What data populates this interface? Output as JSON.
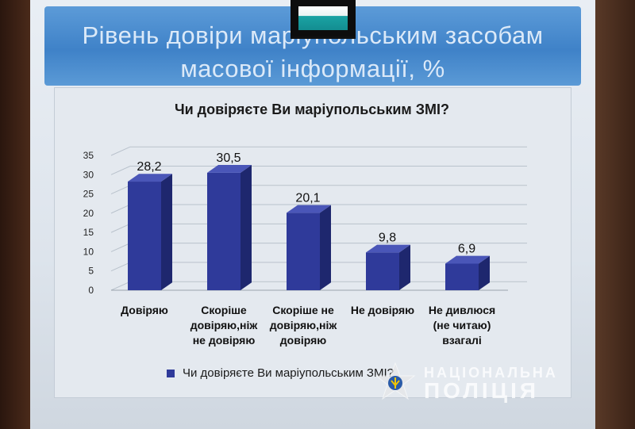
{
  "slide": {
    "title": "Рівень довіри маріупольським засобам масової інформації, %"
  },
  "watermark": {
    "line1": "НАЦІОНАЛЬНА",
    "line2": "ПОЛІЦІЯ"
  },
  "chart_data": {
    "type": "bar",
    "title": "Чи довіряєте Ви маріупольським ЗМІ?",
    "categories": [
      "Довіряю",
      "Скоріше довіряю, ніж не довіряю",
      "Скоріше не довіряю, ніж довіряю",
      "Не довіряю",
      "Не дивлюся (не читаю) взагалі"
    ],
    "category_lines": [
      [
        "Довіряю"
      ],
      [
        "Скоріше",
        "довіряю,ніж",
        "не довіряю"
      ],
      [
        "Скоріше не",
        "довіряю,ніж",
        "довіряю"
      ],
      [
        "Не довіряю"
      ],
      [
        "Не дивлюся",
        "(не читаю)",
        "взагалі"
      ]
    ],
    "series": [
      {
        "name": "Чи довіряєте Ви маріупольським ЗМІ?",
        "values": [
          28.2,
          30.5,
          20.1,
          9.8,
          6.9
        ]
      }
    ],
    "value_labels": [
      "28,2",
      "30,5",
      "20,1",
      "9,8",
      "6,9"
    ],
    "yticks": [
      0,
      5,
      10,
      15,
      20,
      25,
      30,
      35
    ],
    "ylim": [
      0,
      35
    ],
    "grid": true,
    "legend": "bottom",
    "bar_color": "#2f3a9a"
  }
}
